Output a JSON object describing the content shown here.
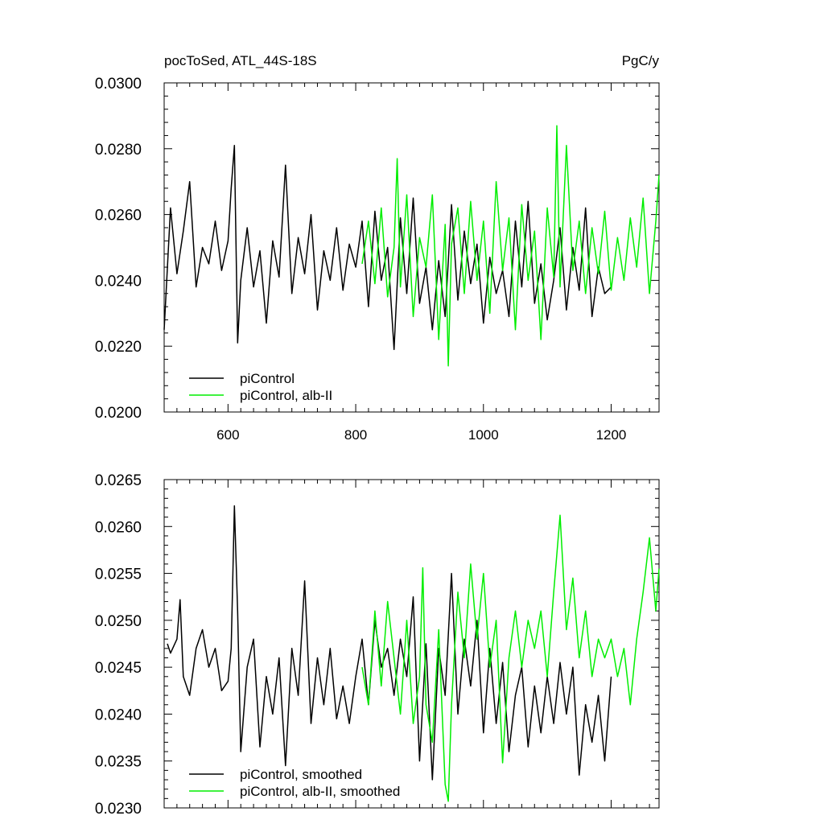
{
  "figure": {
    "left_title": "pocToSed, ATL_44S-18S",
    "right_title": "PgC/y"
  },
  "chart_data": [
    {
      "type": "line",
      "title": "pocToSed, ATL_44S-18S",
      "units": "PgC/y",
      "xlim": [
        500,
        1275
      ],
      "ylim": [
        0.02,
        0.03
      ],
      "x_ticks": [
        600,
        800,
        1000,
        1200
      ],
      "x_tick_labels": [
        "600",
        "800",
        "1000",
        "1200"
      ],
      "y_ticks": [
        0.02,
        0.022,
        0.024,
        0.026,
        0.028,
        0.03
      ],
      "y_tick_labels": [
        "0.0200",
        "0.0220",
        "0.0240",
        "0.0260",
        "0.0280",
        "0.0300"
      ],
      "legend": {
        "position": "bottom-left",
        "entries": [
          "piControl",
          "piControl, alb-II"
        ]
      },
      "series": [
        {
          "name": "piControl",
          "color": "#000000",
          "x": [
            500,
            510,
            520,
            530,
            540,
            550,
            560,
            570,
            580,
            590,
            600,
            605,
            610,
            615,
            620,
            630,
            640,
            650,
            660,
            670,
            680,
            690,
            700,
            710,
            720,
            730,
            740,
            750,
            760,
            770,
            780,
            790,
            800,
            810,
            820,
            830,
            840,
            850,
            860,
            870,
            880,
            890,
            900,
            910,
            920,
            930,
            940,
            950,
            960,
            970,
            980,
            990,
            1000,
            1010,
            1020,
            1030,
            1040,
            1050,
            1060,
            1070,
            1080,
            1090,
            1100,
            1110,
            1120,
            1130,
            1140,
            1150,
            1160,
            1170,
            1180,
            1190,
            1200
          ],
          "values": [
            0.0225,
            0.0262,
            0.0242,
            0.0255,
            0.027,
            0.0238,
            0.025,
            0.0245,
            0.0258,
            0.0243,
            0.0252,
            0.0268,
            0.0281,
            0.0221,
            0.024,
            0.0256,
            0.0238,
            0.0249,
            0.0227,
            0.0252,
            0.0241,
            0.0275,
            0.0236,
            0.0253,
            0.0242,
            0.026,
            0.0231,
            0.0249,
            0.024,
            0.0256,
            0.0237,
            0.0251,
            0.0244,
            0.0258,
            0.0232,
            0.0261,
            0.024,
            0.025,
            0.0219,
            0.0259,
            0.0236,
            0.0265,
            0.0233,
            0.0244,
            0.0225,
            0.0246,
            0.0229,
            0.0263,
            0.0234,
            0.0255,
            0.0239,
            0.0251,
            0.0227,
            0.0247,
            0.0236,
            0.0243,
            0.0229,
            0.0258,
            0.0238,
            0.0264,
            0.0233,
            0.0245,
            0.0228,
            0.024,
            0.0256,
            0.0231,
            0.025,
            0.0237,
            0.0262,
            0.0229,
            0.0244,
            0.0236,
            0.0238
          ]
        },
        {
          "name": "piControl, alb-II",
          "color": "#00ee00",
          "x": [
            810,
            820,
            830,
            840,
            850,
            860,
            865,
            870,
            880,
            890,
            900,
            910,
            920,
            930,
            940,
            945,
            950,
            960,
            970,
            980,
            990,
            1000,
            1010,
            1020,
            1030,
            1040,
            1050,
            1060,
            1070,
            1080,
            1090,
            1100,
            1110,
            1115,
            1120,
            1130,
            1140,
            1150,
            1160,
            1170,
            1180,
            1190,
            1200,
            1210,
            1220,
            1230,
            1240,
            1250,
            1260,
            1270,
            1275
          ],
          "values": [
            0.0245,
            0.0258,
            0.0239,
            0.0262,
            0.0235,
            0.025,
            0.0277,
            0.0238,
            0.0266,
            0.0229,
            0.0253,
            0.0244,
            0.0266,
            0.0222,
            0.0257,
            0.0214,
            0.0251,
            0.0262,
            0.0236,
            0.0264,
            0.024,
            0.0258,
            0.023,
            0.027,
            0.0243,
            0.0259,
            0.0225,
            0.0263,
            0.024,
            0.0255,
            0.0222,
            0.0262,
            0.0241,
            0.0287,
            0.0238,
            0.0281,
            0.0243,
            0.0258,
            0.0236,
            0.0256,
            0.0242,
            0.0261,
            0.0237,
            0.0253,
            0.024,
            0.0259,
            0.0244,
            0.0265,
            0.0236,
            0.0258,
            0.0272
          ]
        }
      ]
    },
    {
      "type": "line",
      "xlim": [
        500,
        1275
      ],
      "ylim": [
        0.023,
        0.0265
      ],
      "x_ticks": [
        600,
        800,
        1000,
        1200
      ],
      "y_ticks": [
        0.023,
        0.0235,
        0.024,
        0.0245,
        0.025,
        0.0255,
        0.026,
        0.0265
      ],
      "y_tick_labels": [
        "0.0230",
        "0.0235",
        "0.0240",
        "0.0245",
        "0.0250",
        "0.0255",
        "0.0260",
        "0.0265"
      ],
      "legend": {
        "position": "bottom-left",
        "entries": [
          "piControl, smoothed",
          "piControl, alb-II, smoothed"
        ]
      },
      "series": [
        {
          "name": "piControl, smoothed",
          "color": "#000000",
          "x": [
            505,
            510,
            520,
            525,
            530,
            540,
            550,
            560,
            570,
            580,
            590,
            600,
            605,
            610,
            615,
            620,
            630,
            640,
            650,
            660,
            670,
            680,
            690,
            700,
            710,
            720,
            730,
            740,
            750,
            760,
            770,
            780,
            790,
            800,
            810,
            820,
            830,
            840,
            850,
            860,
            870,
            880,
            890,
            900,
            910,
            920,
            930,
            940,
            950,
            960,
            970,
            980,
            990,
            1000,
            1010,
            1020,
            1030,
            1040,
            1050,
            1060,
            1070,
            1080,
            1090,
            1100,
            1110,
            1120,
            1130,
            1140,
            1150,
            1160,
            1170,
            1180,
            1190,
            1200
          ],
          "values": [
            0.02475,
            0.02465,
            0.0248,
            0.02522,
            0.0244,
            0.0242,
            0.0247,
            0.0249,
            0.0245,
            0.0247,
            0.02425,
            0.02435,
            0.0247,
            0.02622,
            0.0251,
            0.0236,
            0.0245,
            0.0248,
            0.02365,
            0.0244,
            0.024,
            0.0246,
            0.02345,
            0.0247,
            0.0242,
            0.02542,
            0.0239,
            0.0246,
            0.0241,
            0.0247,
            0.02395,
            0.0243,
            0.0239,
            0.0244,
            0.0248,
            0.0241,
            0.025,
            0.0245,
            0.0247,
            0.0242,
            0.0248,
            0.0244,
            0.02525,
            0.0235,
            0.02475,
            0.0233,
            0.0247,
            0.0242,
            0.0255,
            0.024,
            0.0248,
            0.0243,
            0.025,
            0.0238,
            0.0247,
            0.0239,
            0.02455,
            0.0236,
            0.0242,
            0.0245,
            0.02365,
            0.0243,
            0.0238,
            0.0244,
            0.0239,
            0.02455,
            0.024,
            0.0245,
            0.02335,
            0.0241,
            0.0237,
            0.0242,
            0.0235,
            0.0244
          ]
        },
        {
          "name": "piControl, alb-II, smoothed",
          "color": "#00ee00",
          "x": [
            810,
            820,
            830,
            840,
            850,
            860,
            870,
            880,
            890,
            900,
            905,
            910,
            920,
            930,
            940,
            945,
            950,
            960,
            970,
            980,
            990,
            1000,
            1010,
            1020,
            1030,
            1040,
            1050,
            1060,
            1070,
            1080,
            1090,
            1100,
            1110,
            1120,
            1130,
            1140,
            1150,
            1160,
            1170,
            1180,
            1190,
            1200,
            1210,
            1220,
            1230,
            1240,
            1250,
            1260,
            1270,
            1275
          ],
          "values": [
            0.0245,
            0.0241,
            0.0251,
            0.0243,
            0.0252,
            0.0246,
            0.024,
            0.025,
            0.0239,
            0.0244,
            0.02556,
            0.0241,
            0.0237,
            0.0249,
            0.02325,
            0.02307,
            0.0241,
            0.0253,
            0.0246,
            0.0256,
            0.0248,
            0.0255,
            0.0245,
            0.025,
            0.02348,
            0.0246,
            0.0251,
            0.0245,
            0.025,
            0.0247,
            0.0251,
            0.0244,
            0.0253,
            0.02612,
            0.0249,
            0.02545,
            0.0246,
            0.0251,
            0.0244,
            0.0248,
            0.0246,
            0.0248,
            0.0244,
            0.0247,
            0.0241,
            0.0248,
            0.0253,
            0.02588,
            0.0251,
            0.02555
          ]
        }
      ]
    }
  ]
}
